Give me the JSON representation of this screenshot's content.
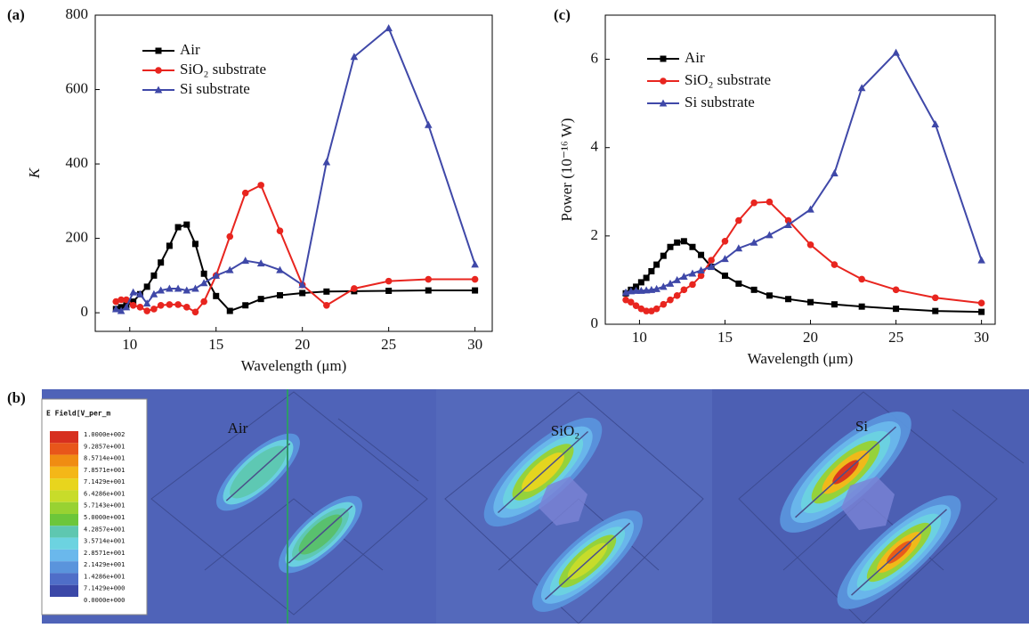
{
  "chart_data": [
    {
      "type": "line",
      "label": "(a)",
      "x_label": "Wavelength (μm)",
      "y_label": "K",
      "xlim": [
        8,
        31
      ],
      "ylim": [
        -50,
        800
      ],
      "xticks": [
        10,
        15,
        20,
        25,
        30
      ],
      "yticks": [
        0,
        200,
        400,
        600,
        800
      ],
      "x": [
        9.2,
        9.5,
        9.8,
        10.2,
        10.6,
        11.0,
        11.4,
        11.8,
        12.3,
        12.8,
        13.3,
        13.8,
        14.3,
        15.0,
        15.8,
        16.7,
        17.6,
        18.7,
        20.0,
        21.4,
        23.0,
        25.0,
        27.3,
        30.0
      ],
      "series": [
        {
          "name": "Air",
          "color": "#000000",
          "marker": "square",
          "values": [
            10,
            15,
            20,
            30,
            50,
            70,
            100,
            135,
            180,
            230,
            237,
            185,
            105,
            45,
            5,
            20,
            37,
            47,
            53,
            57,
            58,
            59,
            60,
            60
          ]
        },
        {
          "name": "SiO₂ substrate",
          "color": "#e8251f",
          "marker": "circle",
          "values": [
            30,
            35,
            35,
            20,
            15,
            5,
            10,
            20,
            22,
            22,
            15,
            2,
            30,
            100,
            205,
            322,
            343,
            220,
            75,
            20,
            65,
            85,
            90,
            90
          ]
        },
        {
          "name": "Si substrate",
          "color": "#3f48a8",
          "marker": "triangle",
          "values": [
            10,
            5,
            15,
            55,
            50,
            25,
            50,
            60,
            65,
            65,
            60,
            65,
            80,
            100,
            115,
            140,
            133,
            115,
            75,
            405,
            688,
            765,
            505,
            130
          ]
        }
      ]
    },
    {
      "type": "line",
      "label": "(c)",
      "x_label": "Wavelength (μm)",
      "y_label": "Power (10⁻¹⁶ W)",
      "xlim": [
        8,
        30.8
      ],
      "ylim": [
        0,
        7
      ],
      "xticks": [
        10,
        15,
        20,
        25,
        30
      ],
      "yticks": [
        0,
        2,
        4,
        6
      ],
      "x": [
        9.2,
        9.5,
        9.8,
        10.1,
        10.4,
        10.7,
        11.0,
        11.4,
        11.8,
        12.2,
        12.6,
        13.1,
        13.6,
        14.2,
        15.0,
        15.8,
        16.7,
        17.6,
        18.7,
        20.0,
        21.4,
        23.0,
        25.0,
        27.3,
        30.0
      ],
      "series": [
        {
          "name": "Air",
          "color": "#000000",
          "marker": "square",
          "values": [
            0.7,
            0.78,
            0.85,
            0.95,
            1.05,
            1.2,
            1.35,
            1.55,
            1.75,
            1.85,
            1.88,
            1.75,
            1.57,
            1.3,
            1.1,
            0.92,
            0.78,
            0.65,
            0.57,
            0.5,
            0.45,
            0.4,
            0.35,
            0.3,
            0.28
          ]
        },
        {
          "name": "SiO₂ substrate",
          "color": "#e8251f",
          "marker": "circle",
          "values": [
            0.55,
            0.5,
            0.42,
            0.35,
            0.3,
            0.3,
            0.35,
            0.45,
            0.55,
            0.65,
            0.78,
            0.9,
            1.1,
            1.45,
            1.88,
            2.35,
            2.75,
            2.77,
            2.35,
            1.8,
            1.35,
            1.02,
            0.78,
            0.6,
            0.48
          ]
        },
        {
          "name": "Si substrate",
          "color": "#3f48a8",
          "marker": "triangle",
          "values": [
            0.72,
            0.75,
            0.76,
            0.76,
            0.77,
            0.78,
            0.8,
            0.85,
            0.92,
            1.0,
            1.08,
            1.15,
            1.22,
            1.3,
            1.48,
            1.72,
            1.85,
            2.02,
            2.25,
            2.6,
            3.42,
            5.35,
            6.15,
            4.53,
            1.45
          ]
        }
      ]
    }
  ],
  "field_panel": {
    "label": "(b)",
    "legend_title": "E Field[V_per_m",
    "legend_labels": [
      "1.0000e+002",
      "9.2857e+001",
      "8.5714e+001",
      "7.8571e+001",
      "7.1429e+001",
      "6.4286e+001",
      "5.7143e+001",
      "5.0000e+001",
      "4.2857e+001",
      "3.5714e+001",
      "2.8571e+001",
      "2.1429e+001",
      "1.4286e+001",
      "7.1429e+000",
      "0.0000e+000"
    ],
    "panels": [
      "Air",
      "SiO₂",
      "Si"
    ]
  }
}
